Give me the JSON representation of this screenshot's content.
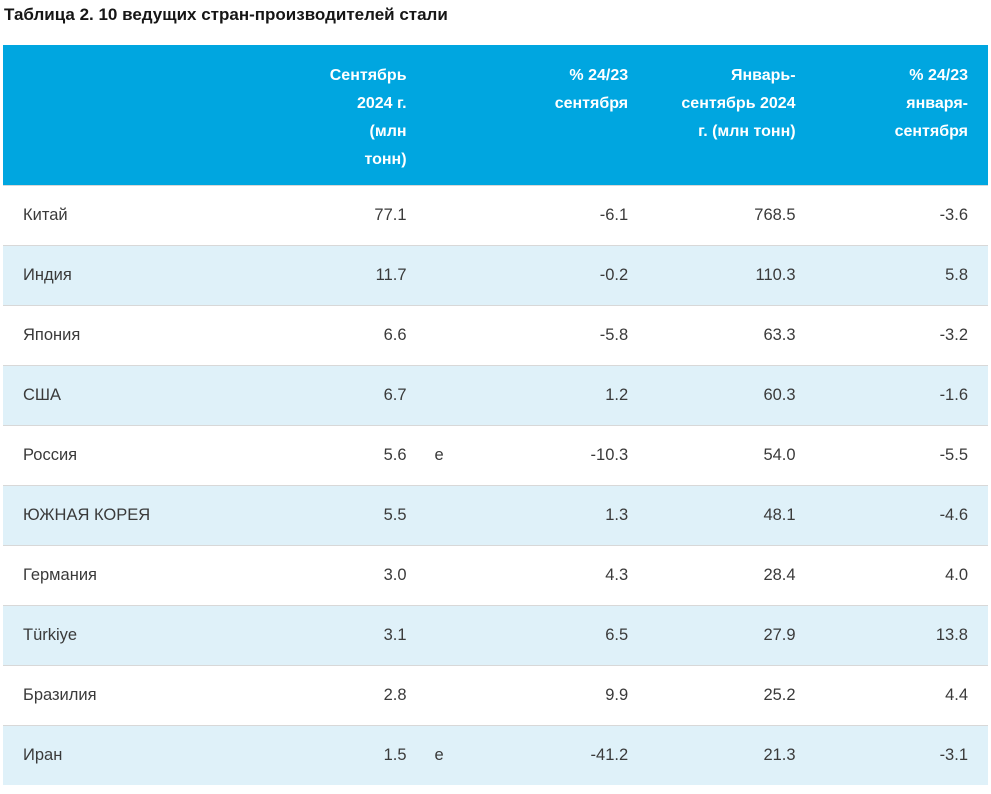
{
  "title": "Таблица 2. 10 ведущих стран-производителей стали",
  "colors": {
    "header_bg": "#00a6e0",
    "header_text": "#ffffff",
    "row_alt_bg": "#dff1f9",
    "row_border": "#d8d8d8",
    "body_text": "#3a3a3a",
    "title_text": "#161616"
  },
  "table": {
    "columns": [
      {
        "label": ""
      },
      {
        "label": "Сентябрь\n2024 г.\n(млн\nтонн)"
      },
      {
        "label": ""
      },
      {
        "label": "% 24/23\nсентября"
      },
      {
        "label": "Январь-\nсентябрь 2024\nг. (млн тонн)"
      },
      {
        "label": "% 24/23\nянваря-\nсентября"
      }
    ],
    "rows": [
      {
        "country": "Китай",
        "sep_2024": "77.1",
        "note": "",
        "pct_sep": "-6.1",
        "jan_sep": "768.5",
        "pct_jan_sep": "-3.6"
      },
      {
        "country": "Индия",
        "sep_2024": "11.7",
        "note": "",
        "pct_sep": "-0.2",
        "jan_sep": "110.3",
        "pct_jan_sep": "5.8"
      },
      {
        "country": "Япония",
        "sep_2024": "6.6",
        "note": "",
        "pct_sep": "-5.8",
        "jan_sep": "63.3",
        "pct_jan_sep": "-3.2"
      },
      {
        "country": "США",
        "sep_2024": "6.7",
        "note": "",
        "pct_sep": "1.2",
        "jan_sep": "60.3",
        "pct_jan_sep": "-1.6"
      },
      {
        "country": "Россия",
        "sep_2024": "5.6",
        "note": "е",
        "pct_sep": "-10.3",
        "jan_sep": "54.0",
        "pct_jan_sep": "-5.5"
      },
      {
        "country": "ЮЖНАЯ КОРЕЯ",
        "sep_2024": "5.5",
        "note": "",
        "pct_sep": "1.3",
        "jan_sep": "48.1",
        "pct_jan_sep": "-4.6"
      },
      {
        "country": "Германия",
        "sep_2024": "3.0",
        "note": "",
        "pct_sep": "4.3",
        "jan_sep": "28.4",
        "pct_jan_sep": "4.0"
      },
      {
        "country": "Türkiye",
        "sep_2024": "3.1",
        "note": "",
        "pct_sep": "6.5",
        "jan_sep": "27.9",
        "pct_jan_sep": "13.8"
      },
      {
        "country": "Бразилия",
        "sep_2024": "2.8",
        "note": "",
        "pct_sep": "9.9",
        "jan_sep": "25.2",
        "pct_jan_sep": "4.4"
      },
      {
        "country": "Иран",
        "sep_2024": "1.5",
        "note": "е",
        "pct_sep": "-41.2",
        "jan_sep": "21.3",
        "pct_jan_sep": "-3.1"
      }
    ]
  },
  "chart_data": {
    "type": "table",
    "title": "Таблица 2. 10 ведущих стран-производителей стали",
    "columns": [
      "",
      "Сентябрь 2024 г. (млн тонн)",
      "% 24/23 сентября",
      "Январь-сентябрь 2024 г. (млн тонн)",
      "% 24/23 января-сентября"
    ],
    "rows": [
      [
        "Китай",
        77.1,
        -6.1,
        768.5,
        -3.6
      ],
      [
        "Индия",
        11.7,
        -0.2,
        110.3,
        5.8
      ],
      [
        "Япония",
        6.6,
        -5.8,
        63.3,
        -3.2
      ],
      [
        "США",
        6.7,
        1.2,
        60.3,
        -1.6
      ],
      [
        "Россия",
        5.6,
        -10.3,
        54.0,
        -5.5
      ],
      [
        "ЮЖНАЯ КОРЕЯ",
        5.5,
        1.3,
        48.1,
        -4.6
      ],
      [
        "Германия",
        3.0,
        4.3,
        28.4,
        4.0
      ],
      [
        "Türkiye",
        3.1,
        6.5,
        27.9,
        13.8
      ],
      [
        "Бразилия",
        2.8,
        9.9,
        25.2,
        4.4
      ],
      [
        "Иран",
        1.5,
        -41.2,
        21.3,
        -3.1
      ]
    ],
    "estimate_flags": {
      "Россия": "е",
      "Иран": "е"
    }
  }
}
